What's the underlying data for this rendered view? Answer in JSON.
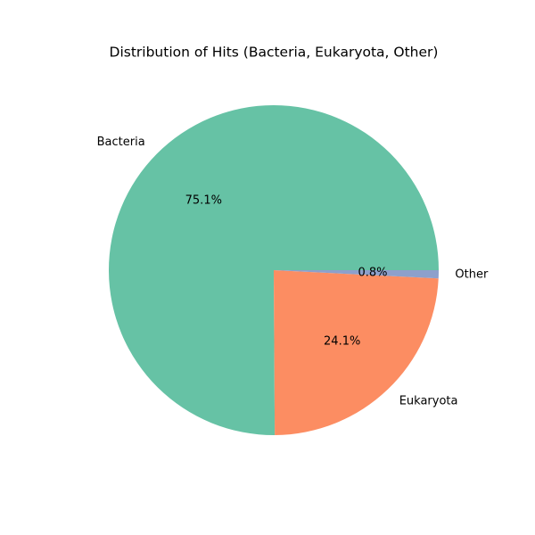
{
  "chart_data": {
    "type": "pie",
    "title": "Distribution of Hits (Bacteria, Eukaryota, Other)",
    "categories": [
      "Bacteria",
      "Eukaryota",
      "Other"
    ],
    "values": [
      75.1,
      24.1,
      0.8
    ],
    "value_labels": [
      "75.1%",
      "24.1%",
      "0.8%"
    ],
    "colors": [
      "#66c2a5",
      "#fc8d62",
      "#8da0cb"
    ],
    "legend": "none"
  }
}
